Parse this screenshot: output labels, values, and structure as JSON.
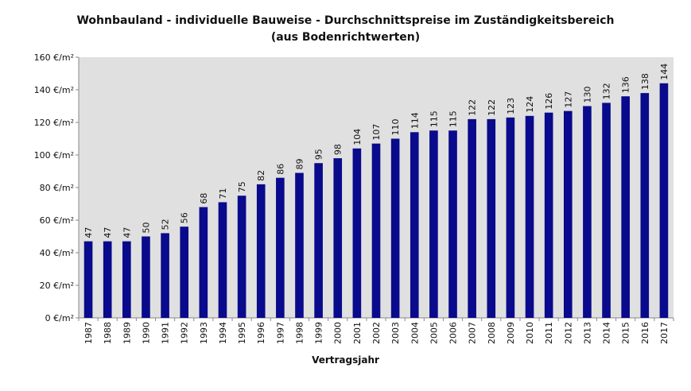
{
  "chart_data": {
    "type": "bar",
    "title": "Wohnbauland  - individuelle Bauweise - Durchschnittspreise im Zuständigkeitsbereich",
    "subtitle": "(aus Bodenrichtwerten)",
    "xlabel": "Vertragsjahr",
    "ylabel": "",
    "categories": [
      "1987",
      "1988",
      "1989",
      "1990",
      "1991",
      "1992",
      "1993",
      "1994",
      "1995",
      "1996",
      "1997",
      "1998",
      "1999",
      "2000",
      "2001",
      "2002",
      "2003",
      "2004",
      "2005",
      "2006",
      "2007",
      "2008",
      "2009",
      "2010",
      "2011",
      "2012",
      "2013",
      "2014",
      "2015",
      "2016",
      "2017"
    ],
    "values": [
      47,
      47,
      47,
      50,
      52,
      56,
      68,
      71,
      75,
      82,
      86,
      89,
      95,
      98,
      104,
      107,
      110,
      114,
      115,
      115,
      122,
      122,
      123,
      124,
      126,
      127,
      130,
      132,
      136,
      138,
      144
    ],
    "ylim": [
      0,
      160
    ],
    "yticks": [
      0,
      20,
      40,
      60,
      80,
      100,
      120,
      140,
      160
    ],
    "ytick_labels": [
      "0 €/m²",
      "20 €/m²",
      "40 €/m²",
      "60 €/m²",
      "80 €/m²",
      "100 €/m²",
      "120 €/m²",
      "140 €/m²",
      "160 €/m²"
    ],
    "grid": false,
    "legend": "none",
    "bar_color": "#0a0a8c",
    "plot_background": "#e0e0e0"
  }
}
